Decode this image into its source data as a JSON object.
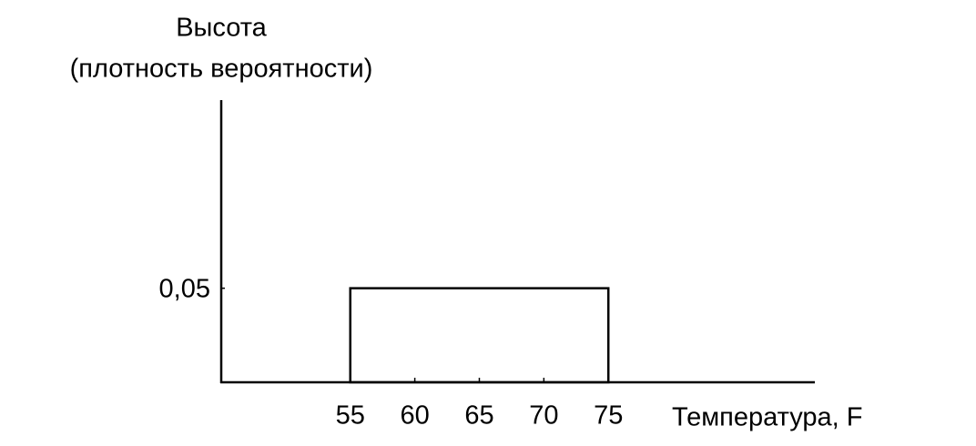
{
  "chart_data": {
    "type": "histogram",
    "ylabel": [
      "Высота",
      "(плотность вероятности)"
    ],
    "xlabel": "Температура, F",
    "bins": [
      55,
      75
    ],
    "values": [
      0.05
    ],
    "color": "#000000",
    "xlim": [
      45,
      91
    ],
    "xticks": [
      55,
      60,
      65,
      70,
      75
    ],
    "ylim": [
      0,
      0.15
    ],
    "yticks": [
      {
        "value": 0.05,
        "label": "0,05"
      }
    ]
  }
}
